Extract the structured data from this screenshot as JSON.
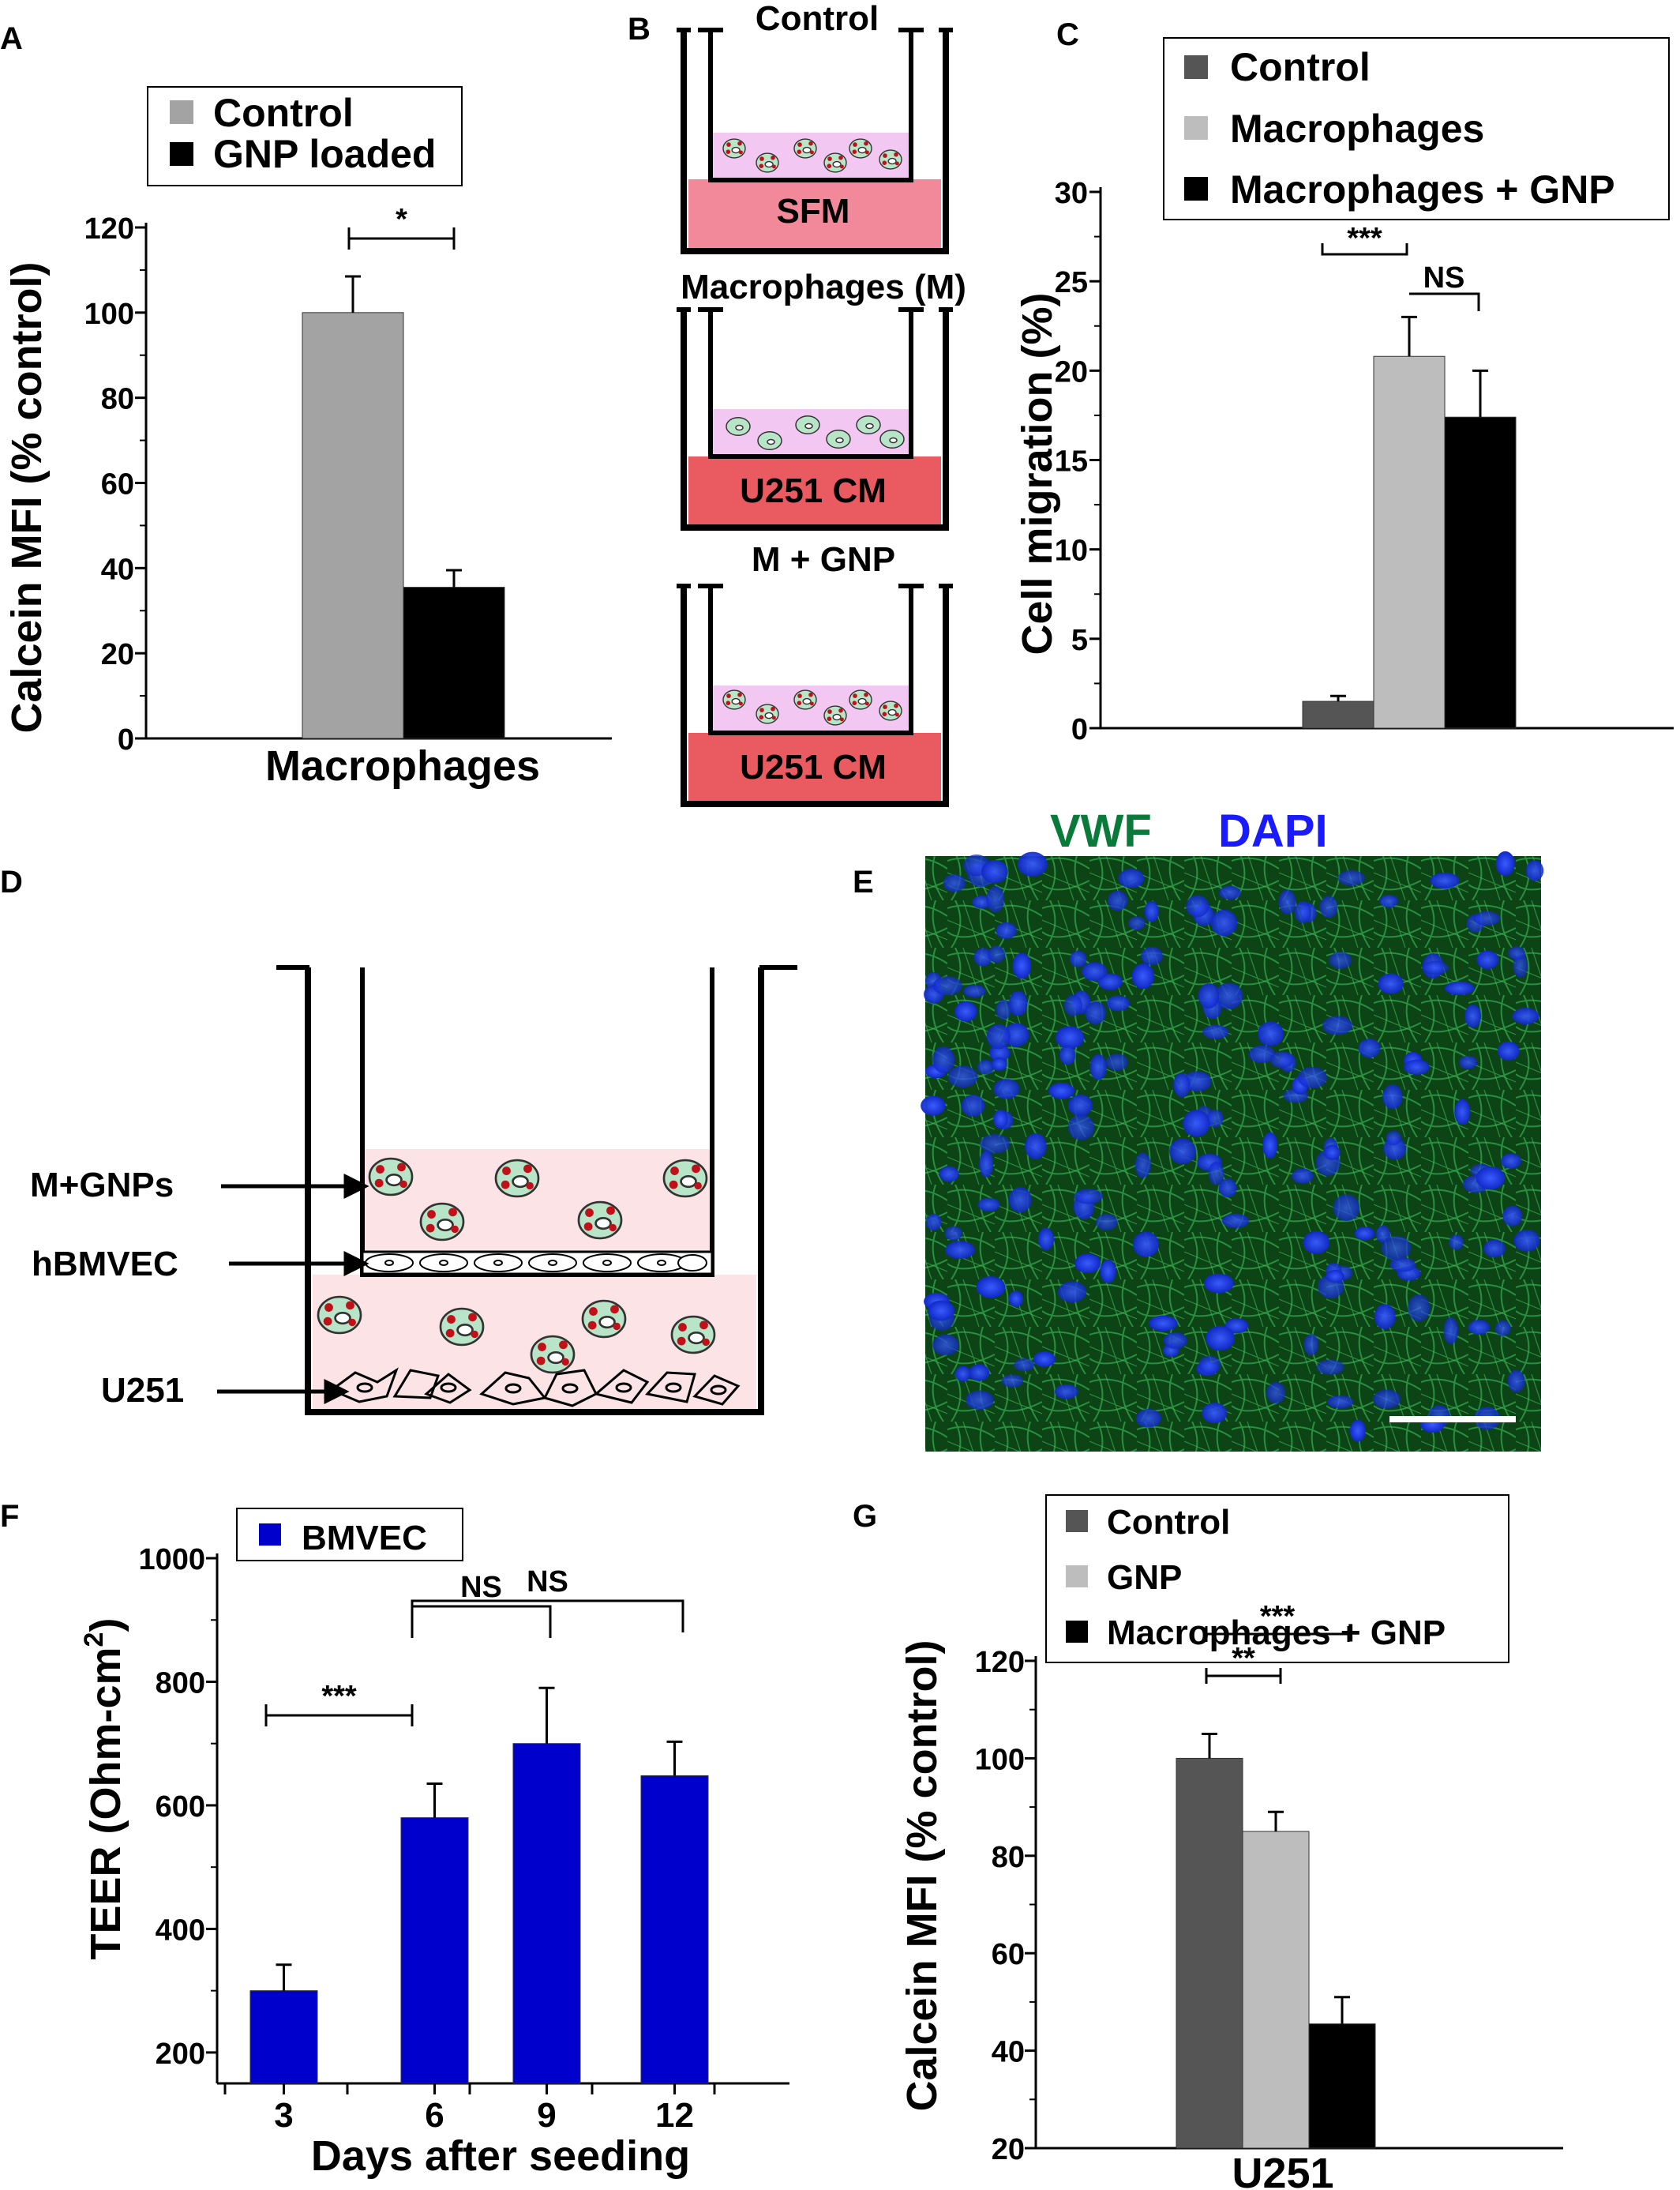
{
  "panels": {
    "A": "A",
    "B": "B",
    "C": "C",
    "D": "D",
    "E": "E",
    "F": "F",
    "G": "G"
  },
  "colors": {
    "dark_gray": "#555555",
    "light_gray": "#bdbdbd",
    "mid_gray": "#a3a3a3",
    "black": "#000000",
    "blue": "#0000cc",
    "pink_light": "#f7d3d6",
    "lilac": "#f2c8f2",
    "pink": "#f2899b",
    "red_medium": "#e95a61",
    "cell_green": "#b8e4c8",
    "vwf_green": "#0a7a3a",
    "dapi_blue": "#1a1aff"
  },
  "chart_data": [
    {
      "id": "A",
      "type": "bar",
      "categories": [
        "Macrophages"
      ],
      "series": [
        {
          "name": "Control",
          "values": [
            100
          ],
          "errors": [
            8.5
          ],
          "color": "#a3a3a3"
        },
        {
          "name": "GNP loaded",
          "values": [
            35.5
          ],
          "errors": [
            4
          ],
          "color": "#000000"
        }
      ],
      "ylabel": "Calcein MFI (% control)",
      "xlabel": "Macrophages",
      "ylim": [
        0,
        120
      ],
      "yticks": [
        "0",
        "20",
        "40",
        "60",
        "80",
        "100",
        "120"
      ],
      "significance": [
        {
          "label": "*"
        }
      ],
      "legend": [
        "Control",
        "GNP loaded"
      ]
    },
    {
      "id": "C",
      "type": "bar",
      "categories": [
        ""
      ],
      "series": [
        {
          "name": "Control",
          "values": [
            1.5
          ],
          "errors": [
            0.3
          ],
          "color": "#555555"
        },
        {
          "name": "Macrophages",
          "values": [
            20.8
          ],
          "errors": [
            2.2
          ],
          "color": "#bdbdbd"
        },
        {
          "name": "Macrophages + GNP",
          "values": [
            17.4
          ],
          "errors": [
            2.6
          ],
          "color": "#000000"
        }
      ],
      "ylabel": "Cell migration (%)",
      "ylim": [
        0,
        30
      ],
      "yticks": [
        "0",
        "5",
        "10",
        "15",
        "20",
        "25",
        "30"
      ],
      "significance": [
        {
          "label": "***"
        },
        {
          "label": "NS"
        }
      ],
      "legend": [
        "Control",
        "Macrophages",
        "Macrophages + GNP"
      ]
    },
    {
      "id": "F",
      "type": "bar",
      "categories": [
        "3",
        "6",
        "9",
        "12"
      ],
      "series": [
        {
          "name": "BMVEC",
          "values": [
            300,
            580,
            700,
            648
          ],
          "errors": [
            42,
            55,
            90,
            55
          ],
          "color": "#0000cc"
        }
      ],
      "xlabel": "Days after seeding",
      "ylabel": "TEER (Ohm-cm",
      "ylabel_sup": "2",
      "ylabel_end": ")",
      "ylim": [
        150,
        1000
      ],
      "yticks": [
        "200",
        "400",
        "600",
        "800",
        "1000"
      ],
      "significance": [
        {
          "label": "***"
        },
        {
          "label": "NS"
        },
        {
          "label": "NS"
        }
      ],
      "legend": [
        "BMVEC"
      ]
    },
    {
      "id": "G",
      "type": "bar",
      "categories": [
        "U251"
      ],
      "series": [
        {
          "name": "Control",
          "values": [
            100
          ],
          "errors": [
            5
          ],
          "color": "#555555"
        },
        {
          "name": "GNP",
          "values": [
            85
          ],
          "errors": [
            4
          ],
          "color": "#bdbdbd"
        },
        {
          "name": "Macrophages + GNP",
          "values": [
            45.5
          ],
          "errors": [
            5.5
          ],
          "color": "#000000"
        }
      ],
      "xlabel": "U251",
      "ylabel": "Calcein MFI (% control)",
      "ylim": [
        20,
        120
      ],
      "yticks": [
        "20",
        "40",
        "60",
        "80",
        "100",
        "120"
      ],
      "significance": [
        {
          "label": "**"
        },
        {
          "label": "***"
        }
      ],
      "legend": [
        "Control",
        "GNP",
        "Macrophages + GNP"
      ]
    }
  ],
  "diagram_B": {
    "titles": [
      "Control",
      "Macrophages (M)",
      "M + GNP"
    ],
    "wells": [
      "SFM",
      "U251 CM",
      "U251 CM"
    ]
  },
  "diagram_D": {
    "labels": [
      "M+GNPs",
      "hBMVEC",
      "U251"
    ]
  },
  "micrograph_E": {
    "stain1": "VWF",
    "stain2": "DAPI"
  }
}
